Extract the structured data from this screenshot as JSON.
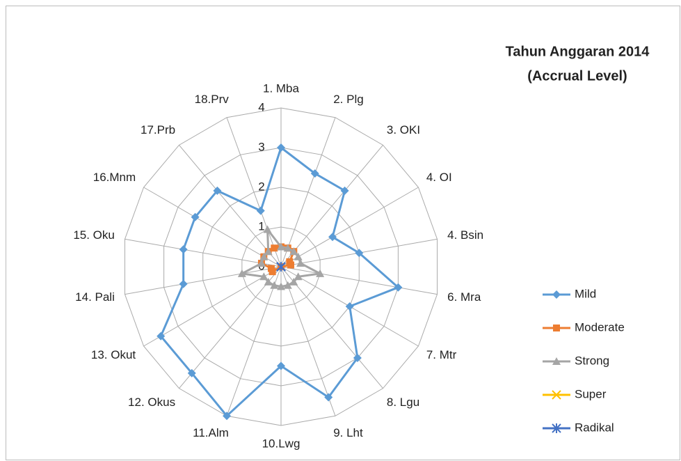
{
  "chart_data": {
    "type": "radar",
    "title": "Tahun Anggaran 2014",
    "subtitle": "(Accrual Level)",
    "categories": [
      "1. Mba",
      "2. Plg",
      "3. OKI",
      "4. OI",
      "4. Bsin",
      "6. Mra",
      "7. Mtr",
      "8. Lgu",
      "9. Lht",
      "10.Lwg",
      "11.Alm",
      "12. Okus",
      "13. Okut",
      "14. Pali",
      "15. Oku",
      "16.Mnm",
      "17.Prb",
      "18.Prv"
    ],
    "series": [
      {
        "name": "Mild",
        "color": "#5b9bd5",
        "marker": "diamond",
        "values": [
          3,
          2.5,
          2.5,
          1.5,
          2,
          3,
          2,
          3,
          3.5,
          2.5,
          4,
          3.5,
          3.5,
          2.5,
          2.5,
          2.5,
          2.5,
          1.5
        ]
      },
      {
        "name": "Moderate",
        "color": "#ed7d31",
        "marker": "square",
        "values": [
          0.5,
          0.5,
          0.5,
          0.25,
          0.25,
          0,
          0,
          0,
          0,
          0,
          0,
          0,
          0.25,
          0.25,
          0.5,
          0.5,
          0.5,
          0.5
        ]
      },
      {
        "name": "Strong",
        "color": "#a5a5a5",
        "marker": "triangle",
        "values": [
          0.5,
          0.5,
          0.5,
          0.5,
          0.5,
          1,
          0.5,
          0.5,
          0.5,
          0.5,
          0.5,
          0.5,
          0.5,
          1,
          0.5,
          0.5,
          0.5,
          1
        ]
      },
      {
        "name": "Super",
        "color": "#ffc000",
        "marker": "x",
        "values": [
          0,
          0,
          0,
          0,
          0,
          0,
          0,
          0,
          0,
          0,
          0,
          0,
          0,
          0,
          0,
          0,
          0,
          0
        ]
      },
      {
        "name": "Radikal",
        "color": "#4472c4",
        "marker": "star",
        "values": [
          0,
          0,
          0,
          0,
          0,
          0,
          0,
          0,
          0,
          0,
          0,
          0,
          0,
          0,
          0,
          0,
          0,
          0
        ]
      }
    ],
    "rlim": [
      0,
      4
    ],
    "rticks": [
      0,
      1,
      2,
      3,
      4
    ],
    "grid": true,
    "legend": "right"
  }
}
